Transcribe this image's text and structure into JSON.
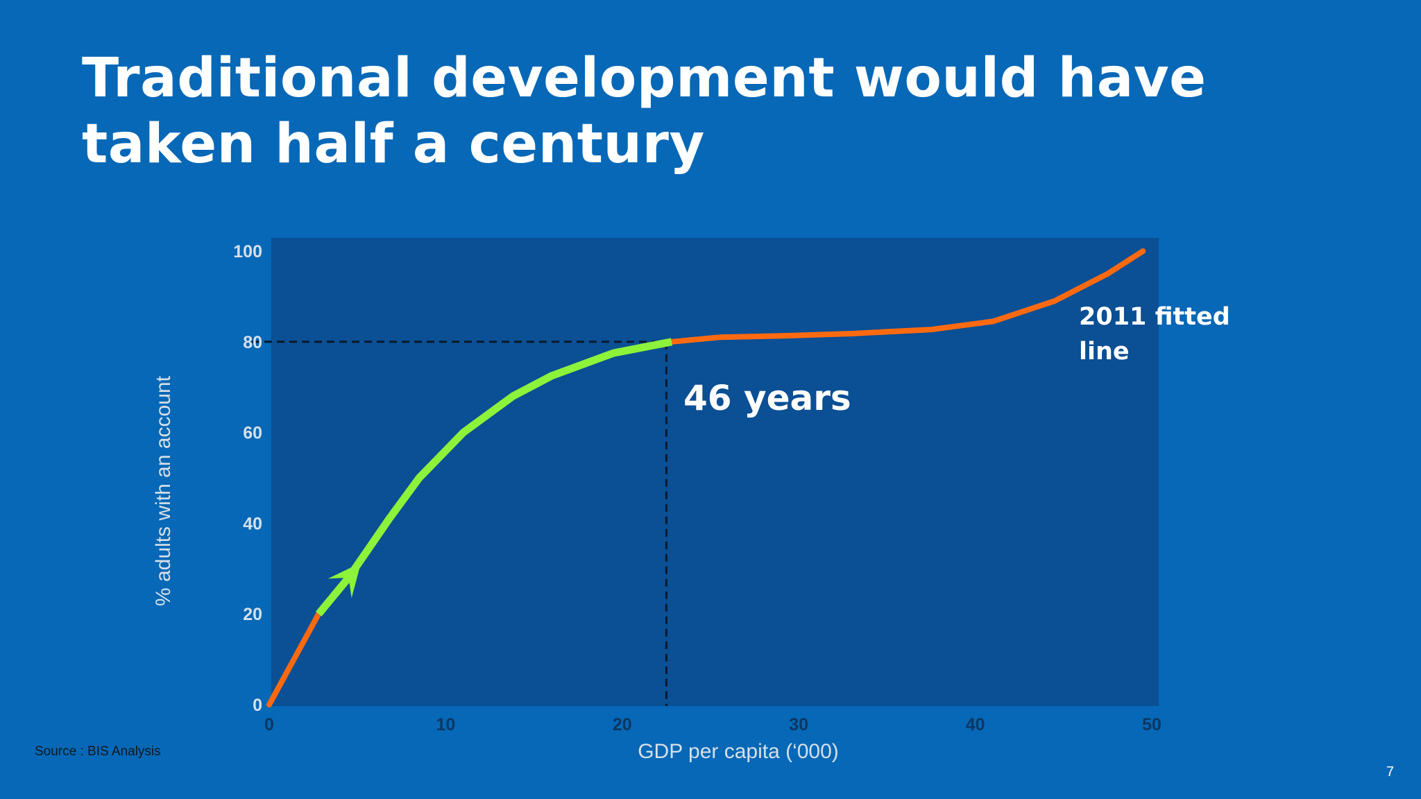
{
  "slide": {
    "title_line1": "Traditional development would have",
    "title_line2": "taken half a century",
    "source": "Source : BIS Analysis",
    "page_number": "7"
  },
  "chart_data": {
    "type": "line",
    "xlabel": "GDP per capita (‘000)",
    "ylabel": "% adults with an account",
    "xlim": [
      0,
      50
    ],
    "ylim": [
      0,
      100
    ],
    "x_ticks": [
      "0",
      "10",
      "20",
      "30",
      "40",
      "50"
    ],
    "y_ticks": [
      "0",
      "20",
      "40",
      "60",
      "80",
      "100"
    ],
    "grid": false,
    "series": [
      {
        "name": "2011 fitted line",
        "color": "#ff6a10",
        "x": [
          0,
          2.8,
          4.5,
          6.8,
          8.5,
          11,
          13.8,
          16,
          19.5,
          22.8,
          25.5,
          29,
          33,
          37.5,
          41,
          44.5,
          47.5,
          49.5
        ],
        "y": [
          0,
          20,
          28,
          41,
          50,
          60,
          68,
          72.5,
          77.5,
          80,
          81,
          81.3,
          81.8,
          82.7,
          84.5,
          89,
          95,
          100
        ]
      }
    ],
    "highlight": {
      "color": "#8cf23a",
      "x_from": 2.8,
      "x_to": 22.8,
      "arrow_at_x": 4.5
    },
    "reference_point": {
      "x": 22.5,
      "y": 80
    },
    "annotations": {
      "years": "46 years",
      "fitted_line_label_line1": "2011 fitted",
      "fitted_line_label_line2": "line"
    },
    "colors": {
      "plot_background": "#0b4f94",
      "axis_text": "#d6e0ea",
      "x_tick_text": "#0c3764",
      "dashed_line": "#0a1a2a"
    }
  }
}
